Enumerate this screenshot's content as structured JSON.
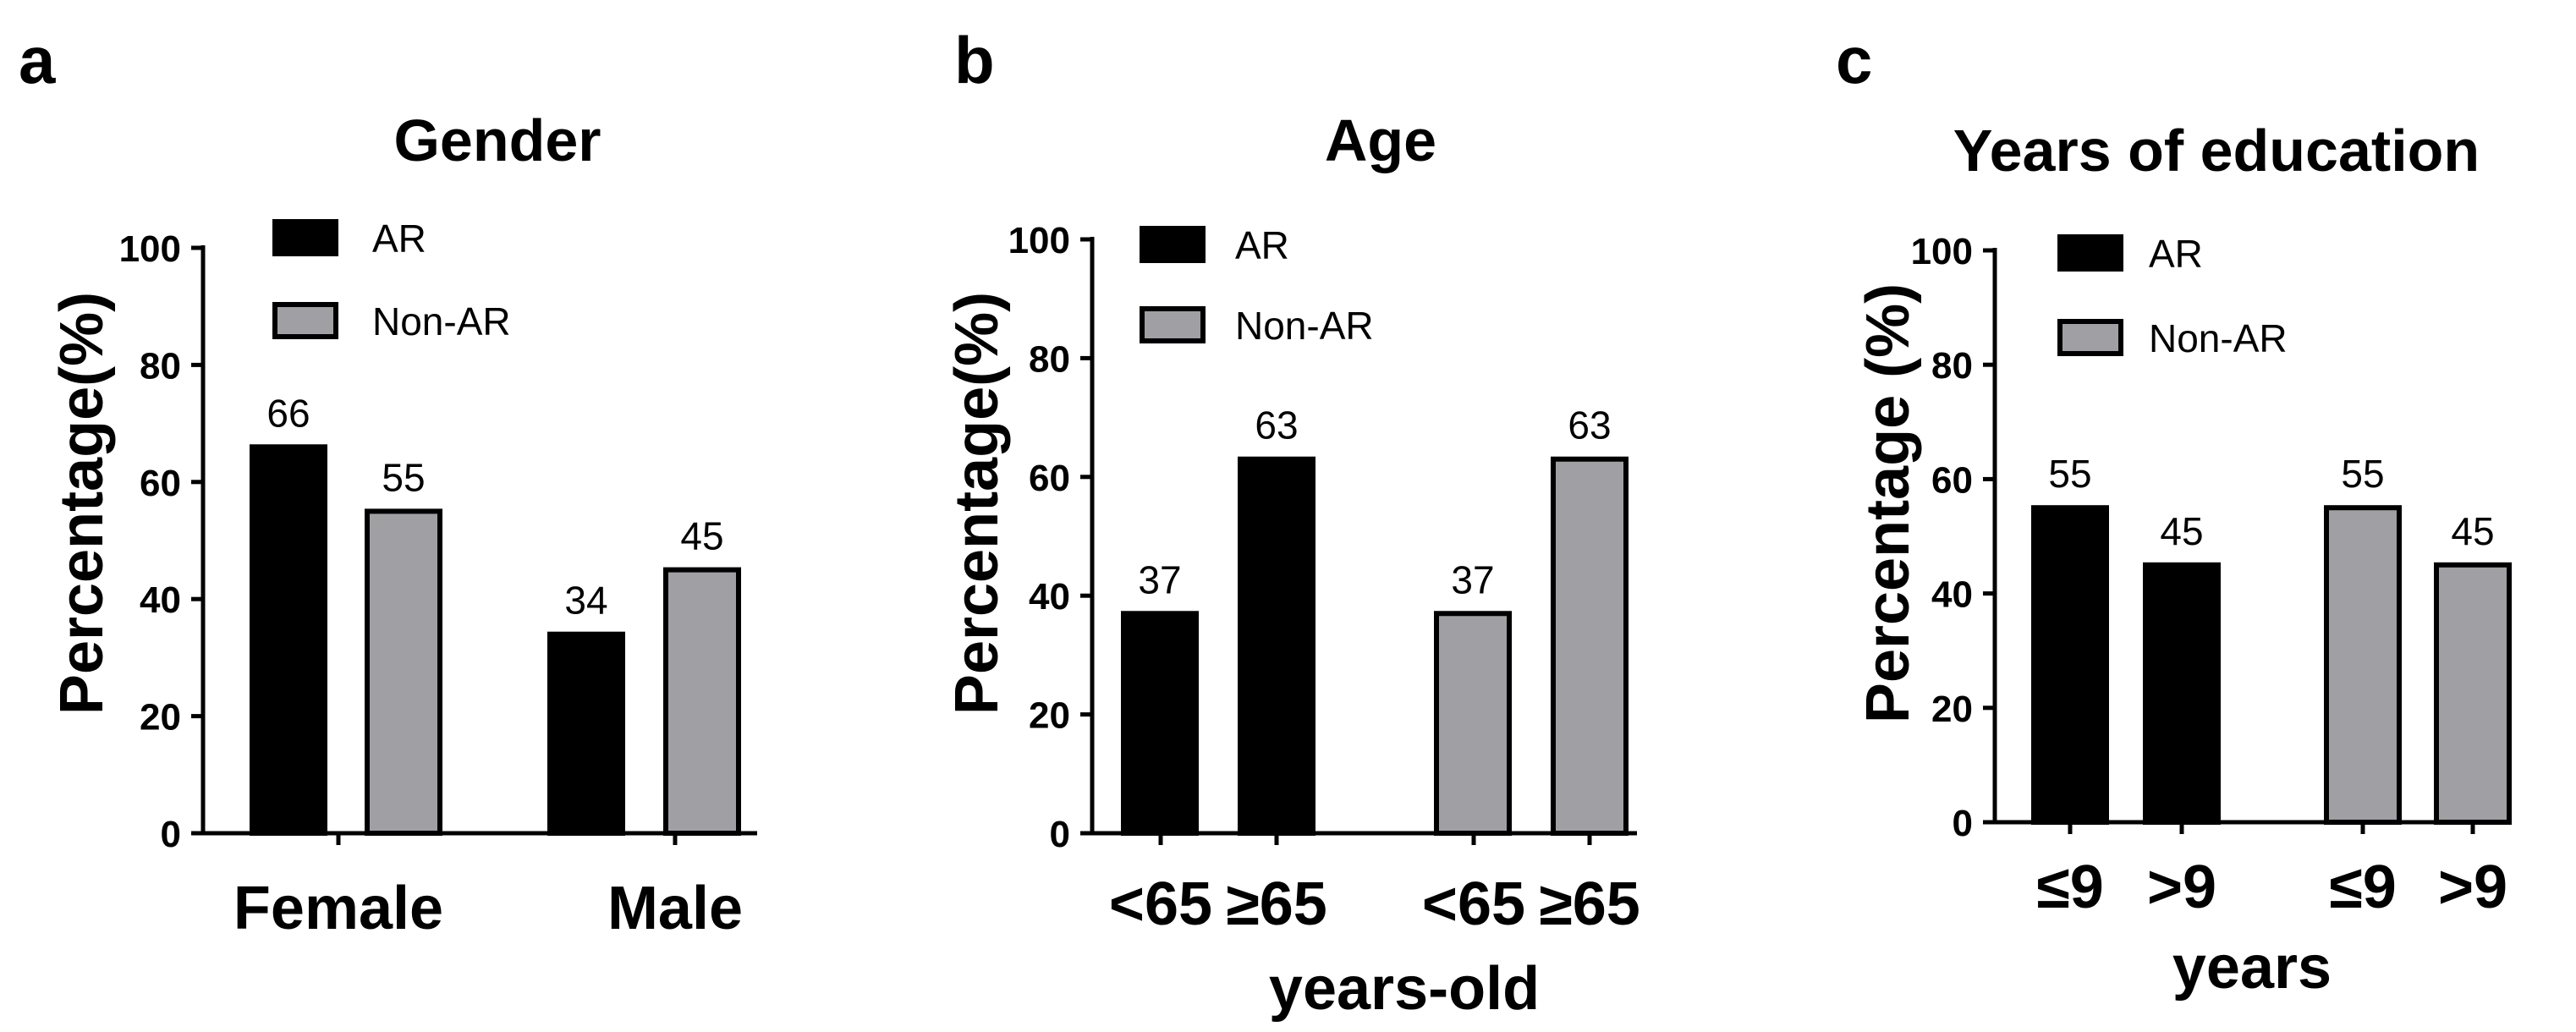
{
  "chart_data": [
    {
      "type": "bar",
      "panel": "a",
      "title": "Gender",
      "ylabel": "Percentage(%)",
      "xlabel": "",
      "ylim": [
        0,
        100
      ],
      "yticks": [
        0,
        20,
        40,
        60,
        80,
        100
      ],
      "categories": [
        "Female",
        "Male"
      ],
      "legend": [
        "AR",
        "Non-AR"
      ],
      "legend_position": "top-left",
      "bars": [
        {
          "category": "Female",
          "series": "AR",
          "value": 66,
          "label": "66"
        },
        {
          "category": "Female",
          "series": "Non-AR",
          "value": 55,
          "label": "55"
        },
        {
          "category": "Male",
          "series": "AR",
          "value": 34,
          "label": "34"
        },
        {
          "category": "Male",
          "series": "Non-AR",
          "value": 45,
          "label": "45"
        }
      ]
    },
    {
      "type": "bar",
      "panel": "b",
      "title": "Age",
      "ylabel": "Percentage(%)",
      "xlabel": "years-old",
      "ylim": [
        0,
        100
      ],
      "yticks": [
        0,
        20,
        40,
        60,
        80,
        100
      ],
      "categories": [
        "<65",
        "≥65",
        "<65",
        "≥65"
      ],
      "legend": [
        "AR",
        "Non-AR"
      ],
      "legend_position": "top-left",
      "bars": [
        {
          "category": "<65",
          "series": "AR",
          "value": 37,
          "label": "37"
        },
        {
          "category": "≥65",
          "series": "AR",
          "value": 63,
          "label": "63"
        },
        {
          "category": "<65",
          "series": "Non-AR",
          "value": 37,
          "label": "37"
        },
        {
          "category": "≥65",
          "series": "Non-AR",
          "value": 63,
          "label": "63"
        }
      ]
    },
    {
      "type": "bar",
      "panel": "c",
      "title": "Years of education",
      "ylabel": "Percentage (%)",
      "xlabel": "years",
      "ylim": [
        0,
        100
      ],
      "yticks": [
        0,
        20,
        40,
        60,
        80,
        100
      ],
      "categories": [
        "≤9",
        ">9",
        "≤9",
        ">9"
      ],
      "legend": [
        "AR",
        "Non-AR"
      ],
      "legend_position": "top-left",
      "bars": [
        {
          "category": "≤9",
          "series": "AR",
          "value": 55,
          "label": "55"
        },
        {
          "category": ">9",
          "series": "AR",
          "value": 45,
          "label": "45"
        },
        {
          "category": "≤9",
          "series": "Non-AR",
          "value": 55,
          "label": "55"
        },
        {
          "category": ">9",
          "series": "Non-AR",
          "value": 45,
          "label": "45"
        }
      ]
    }
  ],
  "colors": {
    "AR": "#000000",
    "Non-AR": "#a0a0a4",
    "outline": "#000000"
  }
}
